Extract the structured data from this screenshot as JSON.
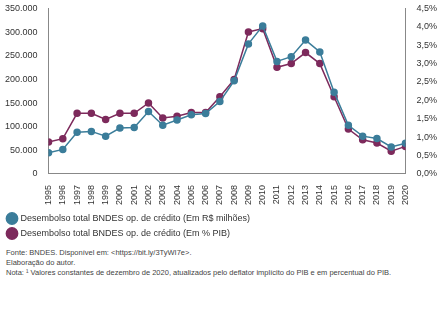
{
  "chart_data": {
    "type": "line",
    "categories": [
      "1995",
      "1996",
      "1997",
      "1998",
      "1999",
      "2000",
      "2001",
      "2002",
      "2003",
      "2004",
      "2005",
      "2006",
      "2007",
      "2008",
      "2009",
      "2010",
      "2011",
      "2012",
      "2013",
      "2014",
      "2015",
      "2016",
      "2017",
      "2018",
      "2019",
      "2020"
    ],
    "series": [
      {
        "name": "Desembolso total BNDES op. de crédito (Em R$ milhões)",
        "color": "#3b7d9a",
        "marker": "circle",
        "axis": "y",
        "values": [
          45000,
          52000,
          88000,
          90000,
          80000,
          97000,
          98000,
          132000,
          103000,
          114000,
          125000,
          128000,
          153000,
          197000,
          275000,
          313000,
          238000,
          248000,
          283000,
          258000,
          173000,
          103000,
          80000,
          75000,
          57000,
          65000
        ]
      },
      {
        "name": "Desembolso total BNDES op. de crédito (Em % PIB)",
        "color": "#7d2a5c",
        "marker": "circle",
        "axis": "y2",
        "values": [
          0.87,
          0.96,
          1.65,
          1.65,
          1.48,
          1.65,
          1.65,
          1.93,
          1.52,
          1.57,
          1.67,
          1.67,
          2.1,
          2.57,
          3.86,
          3.95,
          2.9,
          3.0,
          3.3,
          3.0,
          2.1,
          1.22,
          0.93,
          0.84,
          0.62,
          0.75
        ]
      }
    ],
    "ylim": [
      0,
      350000
    ],
    "yticks": [
      0,
      {
        "value": 50000,
        "label": "50.000"
      },
      {
        "value": 100000,
        "label": "100.000"
      },
      {
        "value": 150000,
        "label": "150.000"
      },
      {
        "value": 200000,
        "label": "200.000"
      },
      {
        "value": 250000,
        "label": "250.000"
      },
      {
        "value": 300000,
        "label": "300.000"
      },
      {
        "value": 350000,
        "label": "350.000"
      }
    ],
    "y2lim": [
      0,
      4.5
    ],
    "y2ticks": [
      {
        "value": 0,
        "label": "0,0%"
      },
      {
        "value": 0.5,
        "label": "0,5%"
      },
      {
        "value": 1,
        "label": "1,0%"
      },
      {
        "value": 1.5,
        "label": "1,5%"
      },
      {
        "value": 2,
        "label": "2,0%"
      },
      {
        "value": 2.5,
        "label": "2,5%"
      },
      {
        "value": 3,
        "label": "3,0%"
      },
      {
        "value": 3.5,
        "label": "3,5%"
      },
      {
        "value": 4,
        "label": "4,0%"
      },
      {
        "value": 4.5,
        "label": "4,5%"
      }
    ],
    "grid": false,
    "legend": "bottom",
    "annotations": [
      "Fonte: BNDES. Disponível em: <https://bit.ly/3TyWI7e>.",
      "Elaboração do autor.",
      "Nota: ¹ Valores constantes de dezembro de 2020, atualizados pelo deflator implícito do PIB e em percentual do PIB."
    ]
  }
}
